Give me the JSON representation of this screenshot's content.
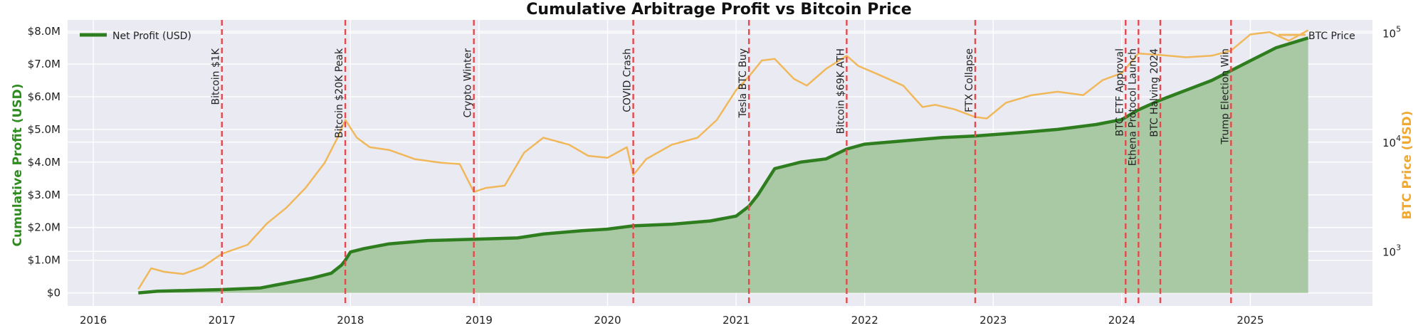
{
  "chart_data": {
    "type": "line",
    "title": "Cumulative Arbitrage Profit vs Bitcoin Price",
    "y_left_label": "Cumulative Profit (USD)",
    "y_right_label": "BTC Price (USD)",
    "y_left_ticks": [
      {
        "value": 0,
        "label": "$0"
      },
      {
        "value": 1000000,
        "label": "$1.0M"
      },
      {
        "value": 2000000,
        "label": "$2.0M"
      },
      {
        "value": 3000000,
        "label": "$3.0M"
      },
      {
        "value": 4000000,
        "label": "$4.0M"
      },
      {
        "value": 5000000,
        "label": "$5.0M"
      },
      {
        "value": 6000000,
        "label": "$6.0M"
      },
      {
        "value": 7000000,
        "label": "$7.0M"
      },
      {
        "value": 8000000,
        "label": "$8.0M"
      }
    ],
    "y_left_range": [
      -400000,
      8350000
    ],
    "y_right_range_log10": [
      2.5,
      5.12
    ],
    "y_right_ticks": [
      {
        "value": 1000,
        "base": "10",
        "exp": "3"
      },
      {
        "value": 10000,
        "base": "10",
        "exp": "4"
      },
      {
        "value": 100000,
        "base": "10",
        "exp": "5"
      }
    ],
    "x_range": [
      2015.8,
      2025.95
    ],
    "x_ticks": [
      "2016",
      "2017",
      "2018",
      "2019",
      "2020",
      "2021",
      "2022",
      "2023",
      "2024",
      "2025"
    ],
    "legend": {
      "profit": "Net Profit (USD)",
      "btc": "BTC Price"
    },
    "colors": {
      "profit_line": "#2e7d1f",
      "profit_fill": "#a8c9a4",
      "btc_line": "#f0b85a",
      "event_line": "#e5484d",
      "plot_bg": "#eaeaf2",
      "left_label": "#2e8b1e",
      "right_label": "#f0a830"
    },
    "events": [
      {
        "x": 2017.0,
        "label": "Bitcoin $1K"
      },
      {
        "x": 2017.96,
        "label": "Bitcoin $20K Peak"
      },
      {
        "x": 2018.96,
        "label": "Crypto Winter"
      },
      {
        "x": 2020.2,
        "label": "COVID Crash"
      },
      {
        "x": 2021.1,
        "label": "Tesla BTC Buy"
      },
      {
        "x": 2021.86,
        "label": "Bitcoin $69K ATH"
      },
      {
        "x": 2022.86,
        "label": "FTX Collapse"
      },
      {
        "x": 2024.03,
        "label": "BTC ETF Approval"
      },
      {
        "x": 2024.13,
        "label": "Ethena Protocol Launch"
      },
      {
        "x": 2024.3,
        "label": "BTC Halving 2024"
      },
      {
        "x": 2024.85,
        "label": "Trump Election Win"
      }
    ],
    "series": [
      {
        "name": "Net Profit (USD)",
        "axis": "left",
        "x": [
          2016.35,
          2016.5,
          2016.8,
          2017.0,
          2017.3,
          2017.5,
          2017.7,
          2017.85,
          2017.93,
          2017.96,
          2018.0,
          2018.1,
          2018.3,
          2018.6,
          2018.96,
          2019.3,
          2019.5,
          2019.8,
          2020.0,
          2020.2,
          2020.5,
          2020.8,
          2021.0,
          2021.1,
          2021.17,
          2021.3,
          2021.5,
          2021.7,
          2021.86,
          2022.0,
          2022.3,
          2022.6,
          2022.86,
          2023.2,
          2023.5,
          2023.8,
          2024.0,
          2024.13,
          2024.3,
          2024.5,
          2024.7,
          2024.85,
          2025.0,
          2025.2,
          2025.45
        ],
        "values": [
          0,
          50000,
          80000,
          100000,
          150000,
          300000,
          450000,
          600000,
          850000,
          1000000,
          1250000,
          1350000,
          1500000,
          1600000,
          1640000,
          1680000,
          1800000,
          1900000,
          1950000,
          2050000,
          2100000,
          2200000,
          2350000,
          2650000,
          3000000,
          3800000,
          4000000,
          4100000,
          4400000,
          4550000,
          4650000,
          4750000,
          4800000,
          4900000,
          5000000,
          5150000,
          5300000,
          5600000,
          5900000,
          6200000,
          6500000,
          6800000,
          7100000,
          7500000,
          7800000
        ]
      },
      {
        "name": "BTC Price",
        "axis": "right",
        "x": [
          2016.35,
          2016.45,
          2016.55,
          2016.7,
          2016.85,
          2017.0,
          2017.2,
          2017.35,
          2017.5,
          2017.65,
          2017.8,
          2017.9,
          2017.96,
          2018.05,
          2018.15,
          2018.3,
          2018.5,
          2018.7,
          2018.85,
          2018.96,
          2019.05,
          2019.2,
          2019.35,
          2019.5,
          2019.7,
          2019.85,
          2020.0,
          2020.15,
          2020.2,
          2020.3,
          2020.5,
          2020.7,
          2020.85,
          2021.0,
          2021.1,
          2021.2,
          2021.3,
          2021.45,
          2021.55,
          2021.7,
          2021.86,
          2021.95,
          2022.1,
          2022.3,
          2022.45,
          2022.55,
          2022.7,
          2022.86,
          2022.95,
          2023.1,
          2023.3,
          2023.5,
          2023.7,
          2023.85,
          2024.0,
          2024.13,
          2024.3,
          2024.5,
          2024.7,
          2024.85,
          2025.0,
          2025.15,
          2025.3,
          2025.45
        ],
        "values": [
          450,
          700,
          650,
          620,
          720,
          950,
          1150,
          1800,
          2500,
          3800,
          6500,
          11000,
          16000,
          11000,
          9000,
          8500,
          7000,
          6500,
          6300,
          3500,
          3800,
          4000,
          8000,
          11000,
          9500,
          7500,
          7200,
          9000,
          5000,
          7000,
          9500,
          11000,
          16000,
          30000,
          40000,
          56000,
          58000,
          38000,
          33000,
          47000,
          62000,
          50000,
          42000,
          33000,
          21000,
          22000,
          20000,
          17000,
          16500,
          23000,
          27000,
          29000,
          27000,
          37000,
          43000,
          65000,
          63000,
          60000,
          62000,
          69000,
          97000,
          102000,
          85000,
          106000
        ]
      }
    ]
  }
}
